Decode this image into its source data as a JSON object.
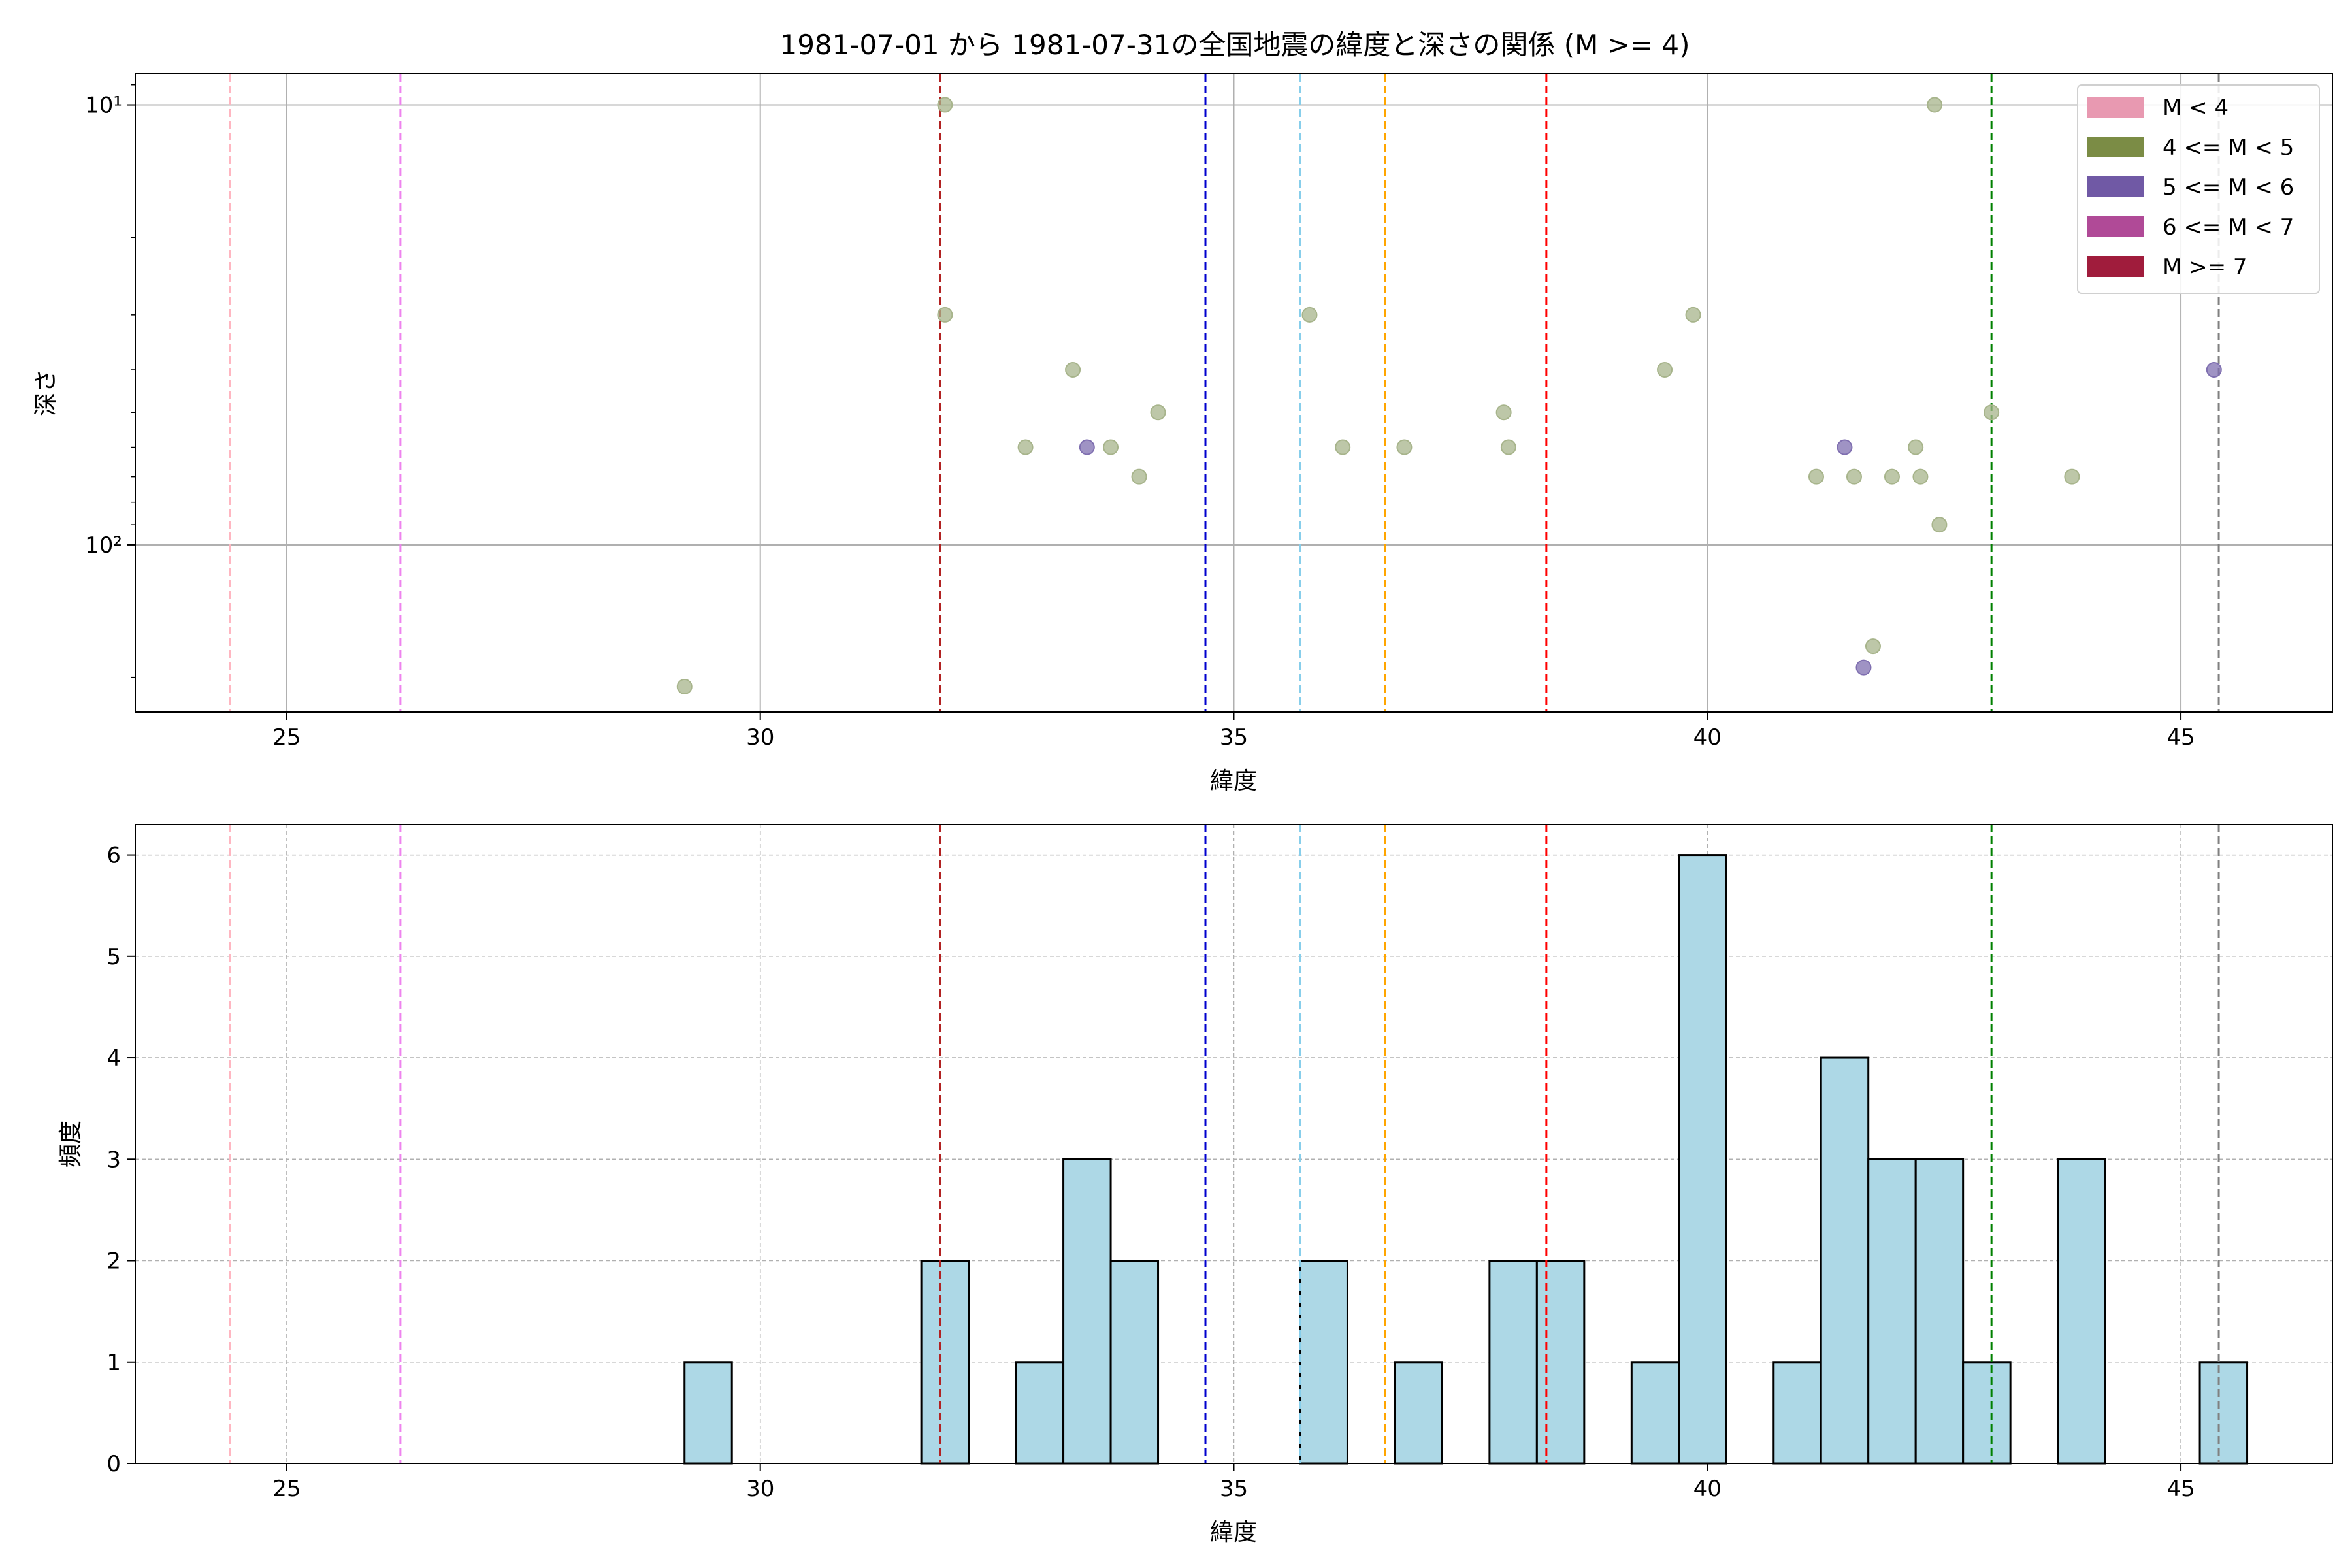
{
  "chart_data": [
    {
      "type": "scatter",
      "title": "1981-07-01 から 1981-07-31の全国地震の緯度と深さの関係 (M >= 4)",
      "xlabel": "緯度",
      "ylabel": "深さ",
      "xlim": [
        23.4,
        46.6
      ],
      "ylim": [
        8.5,
        240
      ],
      "yscale": "log",
      "y_inverted": true,
      "xticks": [
        "25",
        "30",
        "35",
        "40",
        "45"
      ],
      "ytick_values": [
        10,
        100
      ],
      "yticks": [
        "10¹",
        "10²"
      ],
      "grid": true,
      "legend_position": "top-right",
      "legend": [
        {
          "label": "M < 4",
          "color": "#e899b1"
        },
        {
          "label": "4 <= M < 5",
          "color": "#7b8c45"
        },
        {
          "label": "5 <= M < 6",
          "color": "#7059a5"
        },
        {
          "label": "6 <= M < 7",
          "color": "#b04a97"
        },
        {
          "label": "M >= 7",
          "color": "#a01c3c"
        }
      ],
      "vlines": [
        {
          "x": 24.4,
          "color": "#ffb6c1"
        },
        {
          "x": 26.2,
          "color": "#ee82ee"
        },
        {
          "x": 31.9,
          "color": "#b22222"
        },
        {
          "x": 34.7,
          "color": "#0000cd"
        },
        {
          "x": 35.7,
          "color": "#87ceeb"
        },
        {
          "x": 36.6,
          "color": "#ffa500"
        },
        {
          "x": 38.3,
          "color": "#ff0000"
        },
        {
          "x": 43.0,
          "color": "#008000"
        },
        {
          "x": 45.4,
          "color": "#808080"
        }
      ],
      "series": [
        {
          "name": "4 <= M < 5",
          "color": "#a7b48b",
          "points": [
            [
              29.2,
              210
            ],
            [
              31.95,
              10
            ],
            [
              31.95,
              30
            ],
            [
              32.8,
              60
            ],
            [
              33.3,
              40
            ],
            [
              33.7,
              60
            ],
            [
              34.0,
              70
            ],
            [
              34.2,
              50
            ],
            [
              35.8,
              30
            ],
            [
              36.15,
              60
            ],
            [
              36.8,
              60
            ],
            [
              37.85,
              50
            ],
            [
              37.9,
              60
            ],
            [
              39.55,
              40
            ],
            [
              39.85,
              30
            ],
            [
              41.15,
              70
            ],
            [
              41.55,
              70
            ],
            [
              41.75,
              170
            ],
            [
              41.95,
              70
            ],
            [
              42.2,
              60
            ],
            [
              42.25,
              70
            ],
            [
              42.4,
              10
            ],
            [
              42.45,
              90
            ],
            [
              43.0,
              50
            ],
            [
              43.85,
              70
            ]
          ]
        },
        {
          "name": "5 <= M < 6",
          "color": "#7f6fb0",
          "points": [
            [
              33.45,
              60
            ],
            [
              41.45,
              60
            ],
            [
              41.65,
              190
            ],
            [
              45.35,
              40
            ]
          ]
        }
      ]
    },
    {
      "type": "bar",
      "xlabel": "緯度",
      "ylabel": "頻度",
      "xlim": [
        23.4,
        46.6
      ],
      "ylim": [
        0,
        6.3
      ],
      "xticks": [
        "25",
        "30",
        "35",
        "40",
        "45"
      ],
      "yticks": [
        "0",
        "1",
        "2",
        "3",
        "4",
        "5",
        "6"
      ],
      "grid": true,
      "bar_color": "#add8e6",
      "bin_width": 0.5,
      "bins": [
        {
          "start": 29.2,
          "count": 1
        },
        {
          "start": 31.7,
          "count": 2
        },
        {
          "start": 32.7,
          "count": 1
        },
        {
          "start": 33.2,
          "count": 3
        },
        {
          "start": 33.7,
          "count": 2
        },
        {
          "start": 35.7,
          "count": 2
        },
        {
          "start": 36.7,
          "count": 1
        },
        {
          "start": 37.7,
          "count": 2
        },
        {
          "start": 38.2,
          "count": 2
        },
        {
          "start": 39.2,
          "count": 1
        },
        {
          "start": 39.7,
          "count": 6
        },
        {
          "start": 40.7,
          "count": 1
        },
        {
          "start": 41.2,
          "count": 4
        },
        {
          "start": 41.7,
          "count": 3
        },
        {
          "start": 42.2,
          "count": 3
        },
        {
          "start": 42.7,
          "count": 1
        },
        {
          "start": 43.7,
          "count": 3
        },
        {
          "start": 45.2,
          "count": 1
        }
      ],
      "vlines": [
        {
          "x": 24.4,
          "color": "#ffb6c1"
        },
        {
          "x": 26.2,
          "color": "#ee82ee"
        },
        {
          "x": 31.9,
          "color": "#b22222"
        },
        {
          "x": 34.7,
          "color": "#0000cd"
        },
        {
          "x": 35.7,
          "color": "#87ceeb"
        },
        {
          "x": 36.6,
          "color": "#ffa500"
        },
        {
          "x": 38.3,
          "color": "#ff0000"
        },
        {
          "x": 43.0,
          "color": "#008000"
        },
        {
          "x": 45.4,
          "color": "#808080"
        }
      ]
    }
  ]
}
